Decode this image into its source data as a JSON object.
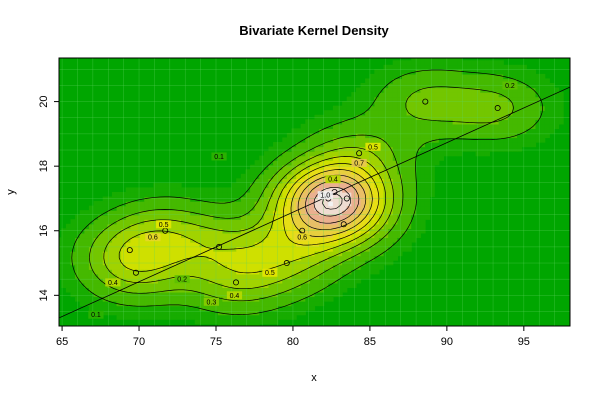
{
  "chart_data": {
    "type": "contour",
    "title": "Bivariate Kernel Density",
    "xlabel": "x",
    "ylabel": "y",
    "xlim": [
      64.8,
      98
    ],
    "ylim": [
      13.05,
      21.35
    ],
    "x_ticks": [
      65,
      70,
      75,
      80,
      85,
      90,
      95
    ],
    "y_ticks": [
      14,
      16,
      18,
      20
    ],
    "grid": true,
    "colors": {
      "background": "#00a600",
      "low": "#00a600",
      "mid": "#e6e600",
      "high": "#eab090",
      "peak": "#f2f2f2",
      "contour": "#000000",
      "grid": "#5fd45f"
    },
    "contour_levels": [
      {
        "label": "0.1",
        "x": 67.2,
        "y": 13.4
      },
      {
        "label": "0.1",
        "x": 75.2,
        "y": 18.3
      },
      {
        "label": "0.2",
        "x": 72.8,
        "y": 14.5
      },
      {
        "label": "0.2",
        "x": 94.1,
        "y": 20.5
      },
      {
        "label": "0.3",
        "x": 74.7,
        "y": 13.8
      },
      {
        "label": "0.4",
        "x": 68.3,
        "y": 14.4
      },
      {
        "label": "0.4",
        "x": 76.2,
        "y": 14.0
      },
      {
        "label": "0.4",
        "x": 82.6,
        "y": 17.6
      },
      {
        "label": "0.5",
        "x": 71.6,
        "y": 16.2
      },
      {
        "label": "0.5",
        "x": 78.5,
        "y": 14.7
      },
      {
        "label": "0.5",
        "x": 85.2,
        "y": 18.6
      },
      {
        "label": "0.6",
        "x": 70.9,
        "y": 15.8
      },
      {
        "label": "0.6",
        "x": 80.6,
        "y": 15.8
      },
      {
        "label": "0.7",
        "x": 84.3,
        "y": 18.1
      },
      {
        "label": "1.0",
        "x": 82.1,
        "y": 17.1
      }
    ],
    "points": [
      {
        "x": 69.4,
        "y": 15.4
      },
      {
        "x": 69.8,
        "y": 14.7
      },
      {
        "x": 71.7,
        "y": 16.0
      },
      {
        "x": 75.2,
        "y": 15.5
      },
      {
        "x": 76.3,
        "y": 14.4
      },
      {
        "x": 79.6,
        "y": 15.0
      },
      {
        "x": 80.6,
        "y": 16.0
      },
      {
        "x": 81.9,
        "y": 17.1
      },
      {
        "x": 82.3,
        "y": 17.0
      },
      {
        "x": 82.7,
        "y": 17.2
      },
      {
        "x": 83.3,
        "y": 16.2
      },
      {
        "x": 83.5,
        "y": 17.0
      },
      {
        "x": 84.3,
        "y": 18.4
      },
      {
        "x": 88.6,
        "y": 20.0
      },
      {
        "x": 93.3,
        "y": 19.8
      }
    ],
    "regression_line": {
      "x1": 64.8,
      "y1": 13.3,
      "x2": 98,
      "y2": 20.45
    }
  }
}
